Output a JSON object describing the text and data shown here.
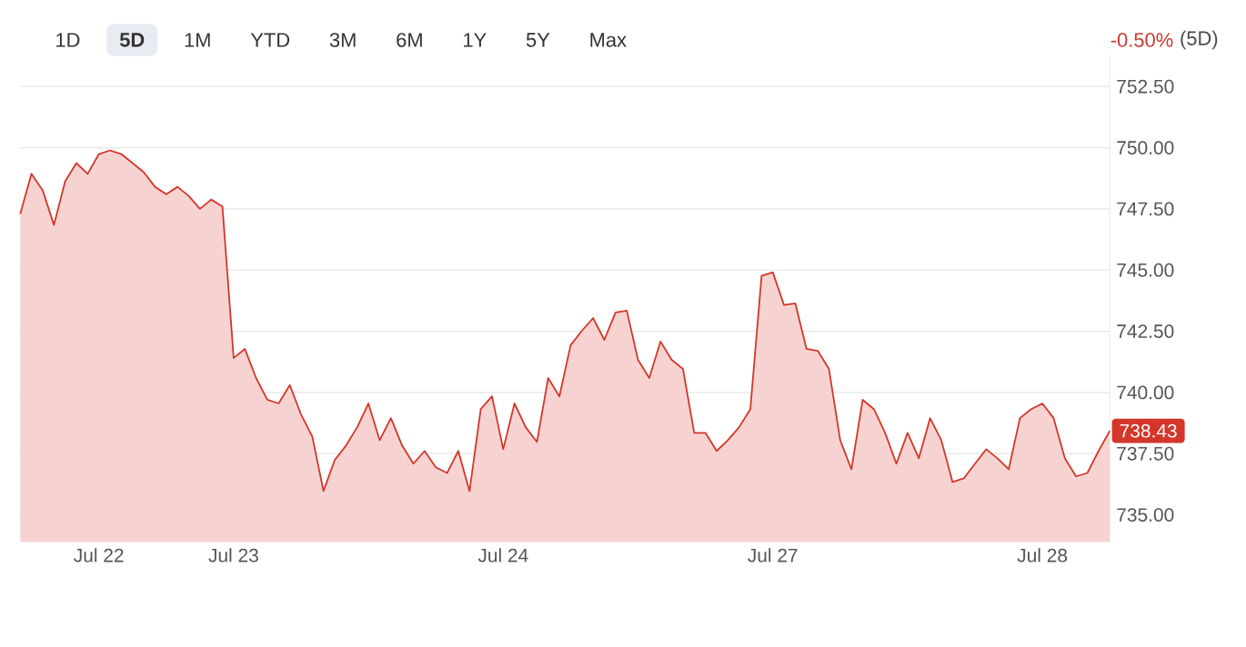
{
  "chart_data": {
    "type": "area",
    "annotations": [
      "1D",
      "5D",
      "1M",
      "YTD",
      "3M",
      "6M",
      "1Y",
      "5Y",
      "Max",
      "-0.50%",
      "(5D)",
      {
        "text": "738.43",
        "y": 738.43
      }
    ],
    "ylim": [
      733.9,
      753.8
    ],
    "categories": [
      null,
      null,
      null,
      null,
      null,
      null,
      null,
      "Jul 22",
      null,
      null,
      null,
      null,
      null,
      null,
      null,
      null,
      null,
      null,
      null,
      "Jul 23",
      null,
      null,
      null,
      null,
      null,
      null,
      null,
      null,
      null,
      null,
      null,
      null,
      null,
      null,
      null,
      null,
      null,
      null,
      null,
      null,
      null,
      null,
      null,
      "Jul 24",
      null,
      null,
      null,
      null,
      null,
      null,
      null,
      null,
      null,
      null,
      null,
      null,
      null,
      null,
      null,
      null,
      null,
      null,
      null,
      null,
      null,
      null,
      null,
      "Jul 27",
      null,
      null,
      null,
      null,
      null,
      null,
      null,
      null,
      null,
      null,
      null,
      null,
      null,
      null,
      null,
      null,
      null,
      null,
      null,
      null,
      null,
      null,
      null,
      "Jul 28",
      null,
      null,
      null,
      null,
      null,
      null
    ],
    "yticks": [
      {
        "value": 735,
        "label": "735.00"
      },
      {
        "value": 737.5,
        "label": "737.50"
      },
      {
        "value": 740,
        "label": "740.00"
      },
      {
        "value": 742.5,
        "label": "742.50"
      },
      {
        "value": 745,
        "label": "745.00"
      },
      {
        "value": 747.5,
        "label": "747.50"
      },
      {
        "value": 750,
        "label": "750.00"
      },
      {
        "value": 752.5,
        "label": "752.50"
      }
    ],
    "grid": "y",
    "series": [
      {
        "color": "#d4362a",
        "values": [
          747.29,
          748.93,
          748.26,
          746.84,
          748.63,
          749.37,
          748.93,
          749.74,
          749.89,
          749.74,
          749.37,
          749.0,
          748.4,
          748.1,
          748.4,
          748.03,
          747.5,
          747.88,
          747.6,
          741.41,
          741.78,
          740.59,
          739.7,
          739.55,
          740.3,
          739.1,
          738.2,
          735.97,
          737.24,
          737.83,
          738.58,
          739.55,
          738.05,
          738.95,
          737.83,
          737.09,
          737.61,
          736.94,
          736.71,
          737.61,
          735.97,
          739.32,
          739.84,
          737.68,
          739.55,
          738.58,
          737.98,
          740.59,
          739.84,
          741.93,
          742.52,
          743.04,
          742.15,
          743.27,
          743.34,
          741.33,
          740.59,
          742.08,
          741.33,
          740.96,
          738.35,
          738.35,
          737.61,
          738.05,
          738.58,
          739.32,
          744.76,
          744.91,
          743.57,
          743.64,
          741.78,
          741.7,
          740.96,
          738.05,
          736.86,
          739.7,
          739.32,
          738.35,
          737.09,
          738.35,
          737.31,
          738.95,
          738.05,
          736.34,
          736.49,
          737.09,
          737.68,
          737.31,
          736.86,
          738.95,
          739.32,
          739.55,
          738.95,
          737.31,
          736.57,
          736.71,
          737.61,
          738.43
        ]
      }
    ]
  }
}
